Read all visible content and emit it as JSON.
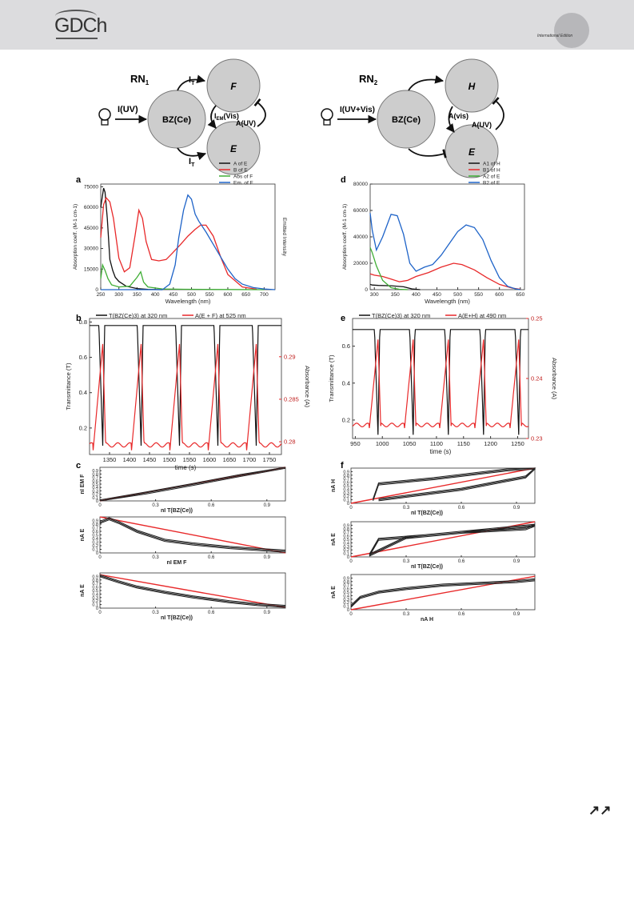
{
  "header": {
    "logo_text": "GDCh",
    "edition_text": "International Edition"
  },
  "footer": {
    "continue_icon": "↗↗"
  },
  "diagrams": {
    "rn1": {
      "title": "RN",
      "title_sub": "1",
      "light_input": "I(UV)",
      "center": "BZ(Ce)",
      "top_node": "F",
      "bottom_node": "E",
      "top_edge": "I",
      "top_edge_sub": "T",
      "bottom_edge": "I",
      "bottom_edge_sub": "T",
      "mid_left": "I",
      "mid_left_sub": "EM",
      "mid_left_tail": "(Vis)",
      "mid_right": "A(UV)"
    },
    "rn2": {
      "title": "RN",
      "title_sub": "2",
      "light_input": "I(UV+Vis)",
      "center": "BZ(Ce)",
      "top_node": "H",
      "bottom_node": "E",
      "mid_left": "A(vis)",
      "mid_right": "A(UV)"
    }
  },
  "chart_data": [
    {
      "panel": "a",
      "type": "line",
      "xlabel": "Wavelength (nm)",
      "ylabel": "Absorption coeff. (M-1 cm-1)",
      "ylabel_right": "Emitted Intensity",
      "xlim": [
        250,
        730
      ],
      "ylim": [
        0,
        77000
      ],
      "xticks": [
        250,
        300,
        350,
        400,
        450,
        500,
        550,
        600,
        650,
        700
      ],
      "yticks": [
        0,
        15000,
        30000,
        45000,
        60000,
        75000
      ],
      "series": [
        {
          "name": "A of E",
          "color": "#111111",
          "x": [
            250,
            258,
            262,
            268,
            275,
            283,
            290,
            300,
            320,
            350,
            380,
            420
          ],
          "y": [
            60000,
            74000,
            71000,
            52000,
            22000,
            14000,
            9000,
            6000,
            2500,
            800,
            200,
            0
          ]
        },
        {
          "name": "B of E",
          "color": "#e8292a",
          "x": [
            250,
            258,
            265,
            275,
            285,
            300,
            315,
            330,
            345,
            355,
            365,
            375,
            390,
            410,
            430,
            445,
            470,
            490,
            510,
            525,
            540,
            560,
            580,
            600,
            640,
            680
          ],
          "y": [
            38000,
            62000,
            67000,
            64000,
            52000,
            23000,
            13000,
            16000,
            40000,
            58000,
            52000,
            35000,
            22000,
            21000,
            22000,
            26000,
            33000,
            39000,
            44000,
            47000,
            47000,
            39000,
            24000,
            11000,
            2000,
            300
          ]
        },
        {
          "name": "Abs of F",
          "color": "#3fae35",
          "x": [
            250,
            255,
            262,
            270,
            280,
            300,
            330,
            350,
            360,
            368,
            380,
            420,
            480,
            600,
            700
          ],
          "y": [
            8000,
            18000,
            14000,
            8000,
            3500,
            2000,
            2500,
            9000,
            13000,
            5500,
            2000,
            500,
            300,
            100,
            0
          ]
        },
        {
          "name": "Em. of F",
          "color": "#1e63c8",
          "x": [
            250,
            420,
            440,
            455,
            465,
            478,
            490,
            500,
            510,
            520,
            540,
            560,
            580,
            600,
            620,
            640,
            670,
            700,
            730
          ],
          "y": [
            0,
            0,
            4000,
            18000,
            38000,
            58000,
            69000,
            66000,
            55000,
            50000,
            42000,
            33000,
            24000,
            15000,
            8000,
            4000,
            1500,
            500,
            0
          ]
        }
      ]
    },
    {
      "panel": "d",
      "type": "line",
      "xlabel": "Wavelength (nm)",
      "ylabel": "Absorption coeff. (M-1 cm-1)",
      "xlim": [
        290,
        660
      ],
      "ylim": [
        0,
        80000
      ],
      "xticks": [
        300,
        350,
        400,
        450,
        500,
        550,
        600,
        650
      ],
      "yticks": [
        0,
        20000,
        40000,
        60000,
        80000
      ],
      "series": [
        {
          "name": "A1 of H",
          "color": "#111111",
          "x": [
            290,
            295,
            310,
            340,
            370,
            390,
            410
          ],
          "y": [
            4000,
            3500,
            3200,
            3000,
            2200,
            600,
            0
          ]
        },
        {
          "name": "B1 of H",
          "color": "#e8292a",
          "x": [
            290,
            300,
            320,
            340,
            360,
            380,
            400,
            430,
            460,
            490,
            510,
            540,
            570,
            600,
            630,
            650
          ],
          "y": [
            12000,
            11000,
            10000,
            8000,
            6000,
            7000,
            10000,
            13000,
            17000,
            20000,
            19000,
            15000,
            9000,
            4000,
            1200,
            300
          ]
        },
        {
          "name": "A2 of E",
          "color": "#3fae35",
          "x": [
            290,
            295,
            305,
            320,
            340,
            360,
            380
          ],
          "y": [
            32000,
            28000,
            18000,
            7000,
            1500,
            300,
            0
          ]
        },
        {
          "name": "B2 of E",
          "color": "#1e63c8",
          "x": [
            290,
            295,
            305,
            320,
            340,
            355,
            370,
            385,
            400,
            420,
            440,
            460,
            480,
            500,
            520,
            540,
            560,
            580,
            600,
            620,
            640,
            650
          ],
          "y": [
            58000,
            45000,
            30000,
            40000,
            57000,
            56000,
            42000,
            20000,
            14000,
            17000,
            19000,
            26000,
            35000,
            44000,
            49000,
            47000,
            38000,
            22000,
            9000,
            2500,
            500,
            0
          ]
        }
      ]
    },
    {
      "panel": "b",
      "type": "line",
      "xlabel": "time (s)",
      "ylabel": "Transmittance (T)",
      "ylabel_right": "Absorbance (A)",
      "xlim": [
        1300,
        1780
      ],
      "ylim": [
        0.05,
        0.82
      ],
      "y2lim": [
        0.2785,
        0.2945
      ],
      "xticks": [
        1350,
        1400,
        1450,
        1500,
        1550,
        1600,
        1650,
        1700,
        1750
      ],
      "yticks": [
        0.2,
        0.4,
        0.6,
        0.8
      ],
      "y2ticks": [
        0.28,
        0.285,
        0.29
      ],
      "legend": [
        "T(BZ(Ce)3) at 320 nm",
        "A(E + F) at 525 nm"
      ],
      "series": [
        {
          "name": "T(BZ(Ce)3) at 320 nm",
          "color": "#111111",
          "axis": "left",
          "period": 96,
          "phase": 1333,
          "high": 0.78,
          "low": 0.1
        },
        {
          "name": "A(E + F) at 525 nm",
          "color": "#e8292a",
          "axis": "right",
          "period": 96,
          "phase": 1333,
          "high": 0.2915,
          "low": 0.279
        }
      ]
    },
    {
      "panel": "e",
      "type": "line",
      "xlabel": "time (s)",
      "ylabel": "Transmittance (T)",
      "ylabel_right": "Absorbance (A)",
      "xlim": [
        945,
        1270
      ],
      "ylim": [
        0.1,
        0.75
      ],
      "y2lim": [
        0.23,
        0.25
      ],
      "xticks": [
        950,
        1000,
        1050,
        1100,
        1150,
        1200,
        1250
      ],
      "yticks": [
        0.2,
        0.4,
        0.6
      ],
      "y2ticks": [
        0.23,
        0.24,
        0.25
      ],
      "legend": [
        "T(BZ(Ce)3) at 320 nm",
        "A(E+H) at 490 nm"
      ],
      "series": [
        {
          "name": "T(BZ(Ce)3) at 320 nm",
          "color": "#111111",
          "axis": "left",
          "period": 65,
          "phase": 992,
          "high": 0.69,
          "low": 0.12
        },
        {
          "name": "A(E+H) at 490 nm",
          "color": "#e8292a",
          "axis": "right",
          "period": 65,
          "phase": 992,
          "high": 0.2465,
          "low": 0.2315
        }
      ]
    },
    {
      "panel": "c",
      "type": "line",
      "subplots": [
        {
          "ylabel": "nI EM F",
          "xlabel": "nI T(BZ(Ce))",
          "xlim": [
            0,
            1
          ],
          "ylim": [
            0,
            1
          ],
          "xticks": [
            0,
            0.3,
            0.6,
            0.9
          ],
          "yticks": [
            0,
            0.1,
            0.2,
            0.3,
            0.4,
            0.5,
            0.6,
            0.7,
            0.8,
            0.9
          ],
          "fit": {
            "x": [
              0,
              1
            ],
            "y": [
              0,
              1
            ]
          },
          "data": {
            "x": [
              0,
              0.25,
              0.5,
              0.75,
              1
            ],
            "y": [
              0,
              0.24,
              0.49,
              0.75,
              1
            ]
          }
        },
        {
          "ylabel": "nA E",
          "xlabel": "nI EM F",
          "xlim": [
            0,
            1
          ],
          "ylim": [
            0,
            1
          ],
          "xticks": [
            0,
            0.3,
            0.6,
            0.9
          ],
          "yticks": [
            0,
            0.1,
            0.2,
            0.3,
            0.4,
            0.5,
            0.6,
            0.7,
            0.8,
            0.9
          ],
          "fit": {
            "x": [
              0,
              1
            ],
            "y": [
              1,
              0
            ]
          },
          "data": {
            "x": [
              0,
              0.05,
              0.1,
              0.2,
              0.35,
              0.5,
              0.7,
              0.9,
              1
            ],
            "y": [
              0.85,
              0.95,
              0.85,
              0.6,
              0.35,
              0.25,
              0.15,
              0.08,
              0.05
            ]
          }
        },
        {
          "ylabel": "nA E",
          "xlabel": "nI T(BZ(Ce))",
          "xlim": [
            0,
            1
          ],
          "ylim": [
            0,
            1
          ],
          "xticks": [
            0,
            0.3,
            0.6,
            0.9
          ],
          "yticks": [
            0,
            0.1,
            0.2,
            0.3,
            0.4,
            0.5,
            0.6,
            0.7,
            0.8,
            0.9
          ],
          "fit": {
            "x": [
              0,
              1
            ],
            "y": [
              0.95,
              0.02
            ]
          },
          "data": {
            "x": [
              0,
              0.1,
              0.2,
              0.35,
              0.5,
              0.7,
              0.85,
              1
            ],
            "y": [
              0.92,
              0.75,
              0.6,
              0.45,
              0.32,
              0.18,
              0.1,
              0.05
            ]
          }
        }
      ]
    },
    {
      "panel": "f",
      "type": "line",
      "subplots": [
        {
          "ylabel": "nA H",
          "xlabel": "nI T(BZ(Ce))",
          "xlim": [
            0,
            1
          ],
          "ylim": [
            0,
            1
          ],
          "xticks": [
            0,
            0.3,
            0.6,
            0.9
          ],
          "yticks": [
            0,
            0.1,
            0.2,
            0.3,
            0.4,
            0.5,
            0.6,
            0.7,
            0.8,
            0.9
          ],
          "fit": {
            "x": [
              0,
              1
            ],
            "y": [
              0,
              1
            ]
          },
          "data": {
            "x": [
              0.12,
              0.15,
              0.45,
              0.85,
              1,
              0.95,
              0.6,
              0.3,
              0.15
            ],
            "y": [
              0.1,
              0.55,
              0.7,
              0.95,
              1,
              0.75,
              0.4,
              0.2,
              0.1
            ]
          }
        },
        {
          "ylabel": "nA E",
          "xlabel": "nI T(BZ(Ce))",
          "xlim": [
            0,
            1
          ],
          "ylim": [
            0,
            1
          ],
          "xticks": [
            0,
            0.3,
            0.6,
            0.9
          ],
          "yticks": [
            0,
            0.1,
            0.2,
            0.3,
            0.4,
            0.5,
            0.6,
            0.7,
            0.8,
            0.9
          ],
          "fit": {
            "x": [
              0,
              1
            ],
            "y": [
              0,
              1
            ]
          },
          "data": {
            "x": [
              0.1,
              0.15,
              0.4,
              0.7,
              1,
              0.95,
              0.6,
              0.3,
              0.1
            ],
            "y": [
              0.05,
              0.5,
              0.6,
              0.75,
              0.9,
              0.8,
              0.7,
              0.55,
              0.05
            ]
          }
        },
        {
          "ylabel": "nA E",
          "xlabel": "nA H",
          "xlim": [
            0,
            1
          ],
          "ylim": [
            0,
            1
          ],
          "xticks": [
            0,
            0.3,
            0.6,
            0.9
          ],
          "yticks": [
            0,
            0.1,
            0.2,
            0.3,
            0.4,
            0.5,
            0.6,
            0.7,
            0.8,
            0.9
          ],
          "fit": {
            "x": [
              0,
              1
            ],
            "y": [
              0,
              0.95
            ]
          },
          "data": {
            "x": [
              0,
              0.05,
              0.15,
              0.3,
              0.5,
              0.7,
              0.9,
              1
            ],
            "y": [
              0.1,
              0.35,
              0.5,
              0.6,
              0.7,
              0.75,
              0.8,
              0.85
            ]
          }
        }
      ]
    }
  ],
  "labels": {
    "panel_a": "a",
    "panel_b": "b",
    "panel_c": "c",
    "panel_d": "d",
    "panel_e": "e",
    "panel_f": "f"
  }
}
